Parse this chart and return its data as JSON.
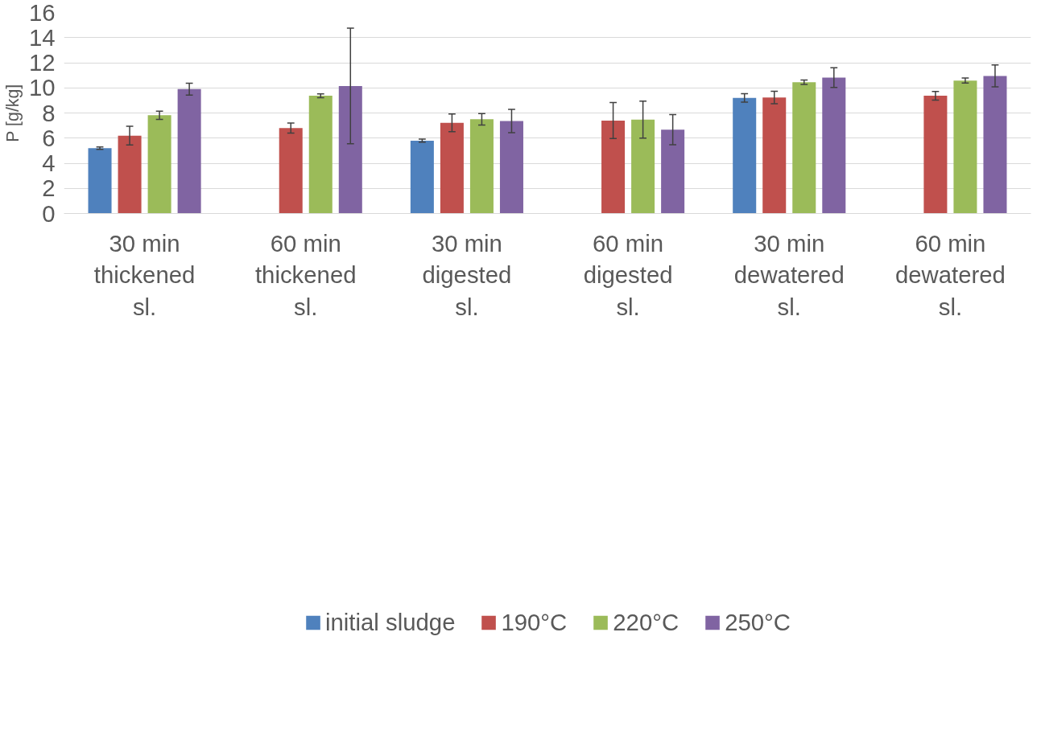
{
  "chart_data": {
    "type": "bar",
    "ylabel": "P [g/kg]",
    "categories": [
      "30 min thickened sl.",
      "60 min thickened sl.",
      "30 min digested sl.",
      "60 min digested sl.",
      "30 min dewatered sl.",
      "60 min dewatered sl."
    ],
    "series": [
      {
        "name": "initial sludge",
        "color": "#4f81bd",
        "values": [
          5.2,
          null,
          5.8,
          null,
          9.2,
          null
        ],
        "errors": [
          0.1,
          null,
          0.12,
          null,
          0.33,
          null
        ]
      },
      {
        "name": "190°C",
        "color": "#c0504d",
        "values": [
          6.2,
          6.8,
          7.22,
          7.4,
          9.23,
          9.37
        ],
        "errors": [
          0.75,
          0.4,
          0.7,
          1.43,
          0.5,
          0.34
        ]
      },
      {
        "name": "220°C",
        "color": "#9bbb59",
        "values": [
          7.82,
          9.37,
          7.5,
          7.47,
          10.45,
          10.58
        ],
        "errors": [
          0.33,
          0.15,
          0.46,
          1.47,
          0.18,
          0.2
        ]
      },
      {
        "name": "250°C",
        "color": "#8064a2",
        "values": [
          9.9,
          10.15,
          7.36,
          6.67,
          10.82,
          10.95
        ],
        "errors": [
          0.47,
          4.6,
          0.93,
          1.2,
          0.78,
          0.87
        ]
      }
    ],
    "ylim": [
      0,
      16
    ],
    "yticks": [
      0,
      2,
      4,
      6,
      8,
      10,
      12,
      14,
      16
    ],
    "grid": "y",
    "legend": "bottom"
  }
}
